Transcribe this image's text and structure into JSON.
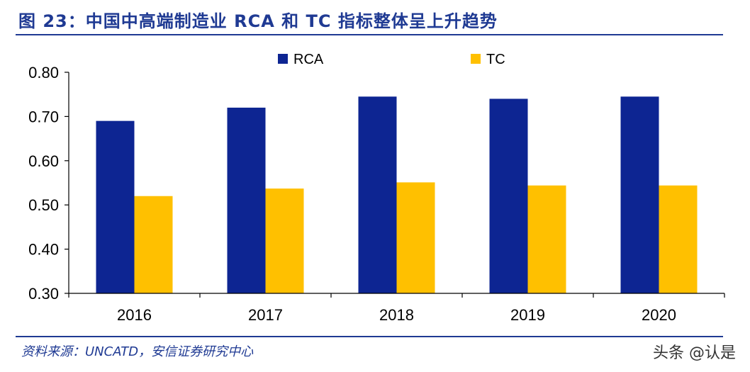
{
  "header": {
    "title": "图 23：中国中高端制造业 RCA 和 TC 指标整体呈上升趋势"
  },
  "footer": {
    "source": "资料来源：UNCATD，安信证券研究中心",
    "watermark": "头条 @认是"
  },
  "colors": {
    "accent": "#1f3a93",
    "rca": "#0d2592",
    "tc": "#ffc000"
  },
  "chart_data": {
    "type": "bar",
    "categories": [
      "2016",
      "2017",
      "2018",
      "2019",
      "2020"
    ],
    "series": [
      {
        "name": "RCA",
        "values": [
          0.69,
          0.72,
          0.745,
          0.74,
          0.745
        ]
      },
      {
        "name": "TC",
        "values": [
          0.52,
          0.537,
          0.551,
          0.544,
          0.544
        ]
      }
    ],
    "yticks": [
      "0.30",
      "0.40",
      "0.50",
      "0.60",
      "0.70",
      "0.80"
    ],
    "ylim": [
      0.3,
      0.8
    ],
    "grid": false,
    "legend_position": "top-center"
  }
}
